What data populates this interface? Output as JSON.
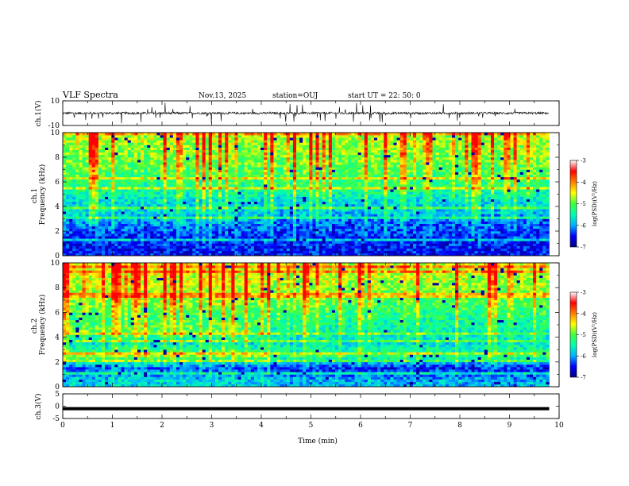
{
  "header": {
    "title": "VLF Spectra",
    "date": "Nov.13, 2025",
    "station": "station=OUJ",
    "start_ut": "start UT =  22: 50: 0"
  },
  "colorbar_label": "log(PSD)(V²/Hz)",
  "colormap": [
    "#000080",
    "#0000ff",
    "#00b0ff",
    "#00ffb0",
    "#40ff40",
    "#ffff00",
    "#ff8000",
    "#ff0000",
    "#ffffff"
  ],
  "chart_data": [
    {
      "type": "line",
      "name": "ch1-waveform",
      "ylabel": "ch.1(V)",
      "ylim": [
        -10,
        10
      ],
      "y_tick_labels": [
        "10",
        "-10"
      ],
      "xlim": [
        0,
        10
      ],
      "baseline": 0,
      "noise": "small fluctuations around ~0 V with frequent downward/upward spikes"
    },
    {
      "type": "heatmap",
      "name": "ch1-spectrogram",
      "ylabel": "ch.1\nFrequency (kHz)",
      "xlim": [
        0,
        10
      ],
      "ylim": [
        0,
        10
      ],
      "x_tick_labels": [
        "0",
        "1",
        "2",
        "3",
        "4",
        "5",
        "6",
        "7",
        "8",
        "9",
        "10"
      ],
      "y_tick_labels": [
        "0",
        "2",
        "4",
        "6",
        "8",
        "10"
      ],
      "color_range": [
        -7,
        -3
      ],
      "colorbar_ticks": [
        "-3",
        "-4",
        "-5",
        "-6",
        "-7"
      ],
      "data_end_min": 9.8,
      "profile_before_4_2_min": [
        {
          "f_khz": 0.5,
          "level": -6.4
        },
        {
          "f_khz": 1.5,
          "level": -6.4
        },
        {
          "f_khz": 2.5,
          "level": -6.0
        },
        {
          "f_khz": 3.5,
          "level": -5.6
        },
        {
          "f_khz": 4.5,
          "level": -5.6
        },
        {
          "f_khz": 5.5,
          "level": -5.2
        },
        {
          "f_khz": 6.5,
          "level": -5.0
        },
        {
          "f_khz": 7.5,
          "level": -4.8
        },
        {
          "f_khz": 8.5,
          "level": -4.7
        },
        {
          "f_khz": 9.5,
          "level": -4.6
        }
      ],
      "profile_after_4_2_min": [
        {
          "f_khz": 0.5,
          "level": -6.4
        },
        {
          "f_khz": 1.5,
          "level": -6.4
        },
        {
          "f_khz": 2.5,
          "level": -6.2
        },
        {
          "f_khz": 3.5,
          "level": -5.8
        },
        {
          "f_khz": 4.5,
          "level": -5.6
        },
        {
          "f_khz": 5.5,
          "level": -5.2
        },
        {
          "f_khz": 6.5,
          "level": -5.0
        },
        {
          "f_khz": 7.5,
          "level": -4.8
        },
        {
          "f_khz": 8.5,
          "level": -4.7
        },
        {
          "f_khz": 9.5,
          "level": -4.6
        }
      ]
    },
    {
      "type": "heatmap",
      "name": "ch2-spectrogram",
      "ylabel": "ch.2\nFrequency (kHz)",
      "xlim": [
        0,
        10
      ],
      "ylim": [
        0,
        10
      ],
      "x_tick_labels": [
        "0",
        "1",
        "2",
        "3",
        "4",
        "5",
        "6",
        "7",
        "8",
        "9",
        "10"
      ],
      "y_tick_labels": [
        "0",
        "2",
        "4",
        "6",
        "8",
        "10"
      ],
      "color_range": [
        -7,
        -3
      ],
      "colorbar_ticks": [
        "-3",
        "-4",
        "-5",
        "-6",
        "-7"
      ],
      "data_end_min": 9.8,
      "profile_before_4_2_min": [
        {
          "f_khz": 0.5,
          "level": -5.6
        },
        {
          "f_khz": 1.5,
          "level": -6.2
        },
        {
          "f_khz": 2.5,
          "level": -4.6
        },
        {
          "f_khz": 3.5,
          "level": -5.6
        },
        {
          "f_khz": 4.5,
          "level": -4.8
        },
        {
          "f_khz": 5.5,
          "level": -5.0
        },
        {
          "f_khz": 6.5,
          "level": -4.8
        },
        {
          "f_khz": 7.5,
          "level": -4.6
        },
        {
          "f_khz": 8.5,
          "level": -4.4
        },
        {
          "f_khz": 9.5,
          "level": -4.4
        }
      ],
      "profile_after_4_2_min": [
        {
          "f_khz": 0.5,
          "level": -5.8
        },
        {
          "f_khz": 1.5,
          "level": -6.4
        },
        {
          "f_khz": 2.5,
          "level": -5.0
        },
        {
          "f_khz": 3.5,
          "level": -5.6
        },
        {
          "f_khz": 4.5,
          "level": -5.4
        },
        {
          "f_khz": 5.5,
          "level": -5.2
        },
        {
          "f_khz": 6.5,
          "level": -5.0
        },
        {
          "f_khz": 7.5,
          "level": -4.8
        },
        {
          "f_khz": 8.5,
          "level": -4.6
        },
        {
          "f_khz": 9.5,
          "level": -4.5
        }
      ]
    },
    {
      "type": "line",
      "name": "ch3-trace",
      "ylabel": "ch.3(V)",
      "ylim": [
        -5,
        5
      ],
      "y_tick_labels": [
        "5",
        "0",
        "-5"
      ],
      "xlim": [
        0,
        10
      ],
      "x_tick_labels": [
        "0",
        "1",
        "2",
        "3",
        "4",
        "5",
        "6",
        "7",
        "8",
        "9",
        "10"
      ],
      "xlabel": "Time (min)",
      "constant_value": -1.0,
      "data_end_min": 9.8
    }
  ]
}
